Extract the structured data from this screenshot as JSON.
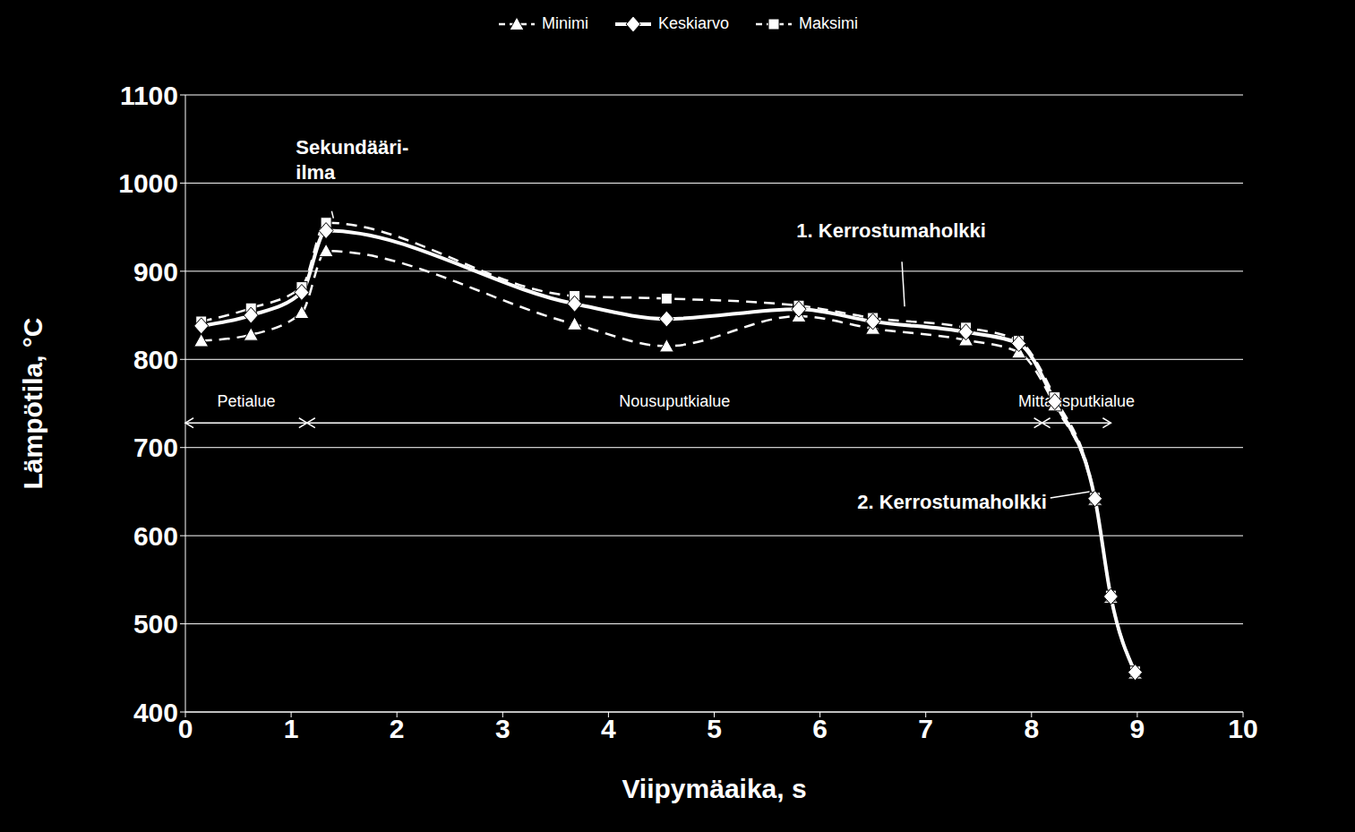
{
  "chart_data": {
    "type": "line",
    "xlabel": "Viipymäaika, s",
    "ylabel": "Lämpötila, °C",
    "x": [
      0.15,
      0.62,
      1.1,
      1.33,
      3.68,
      4.55,
      5.8,
      6.5,
      7.38,
      7.88,
      8.22,
      8.6,
      8.75,
      8.98
    ],
    "series": [
      {
        "name": "Minimi",
        "color": "#ffffff",
        "marker": "triangle",
        "line_style": "dashed",
        "values": [
          821,
          828,
          853,
          923,
          840,
          815,
          849,
          835,
          822,
          808,
          748,
          641,
          530,
          444
        ]
      },
      {
        "name": "Keskiarvo",
        "color": "#ffffff",
        "marker": "diamond",
        "line_style": "solid",
        "values": [
          838,
          850,
          876,
          946,
          863,
          846,
          857,
          843,
          831,
          818,
          752,
          642,
          531,
          445
        ]
      },
      {
        "name": "Maksimi",
        "color": "#ffffff",
        "marker": "square",
        "line_style": "dashed",
        "values": [
          843,
          858,
          882,
          955,
          872,
          869,
          861,
          847,
          836,
          821,
          757,
          643,
          532,
          446
        ]
      }
    ],
    "xlim": [
      0,
      10
    ],
    "xticks": [
      0,
      1,
      2,
      3,
      4,
      5,
      6,
      7,
      8,
      9,
      10
    ],
    "ylim": [
      400,
      1100
    ],
    "yticks": [
      400,
      500,
      600,
      700,
      800,
      900,
      1000,
      1100
    ],
    "grid": true,
    "legend": "top",
    "annotations": [
      {
        "lines": [
          "Sekundääri-",
          "ilma"
        ],
        "x": 1.4,
        "y": 960
      },
      {
        "lines": [
          "1. Kerrostumaholkki"
        ],
        "x": 6.8,
        "y": 860
      },
      {
        "lines": [
          "2. Kerrostumaholkki"
        ],
        "x": 8.55,
        "y": 650
      }
    ],
    "regions": [
      {
        "label": "Petialue",
        "x": [
          0,
          1.15
        ],
        "y": 728
      },
      {
        "label": "Nousuputkialue",
        "x": [
          1.15,
          8.1
        ],
        "y": 728
      },
      {
        "label": "Mittausputkialue",
        "x": [
          8.1,
          8.75
        ],
        "y": 728
      }
    ]
  }
}
